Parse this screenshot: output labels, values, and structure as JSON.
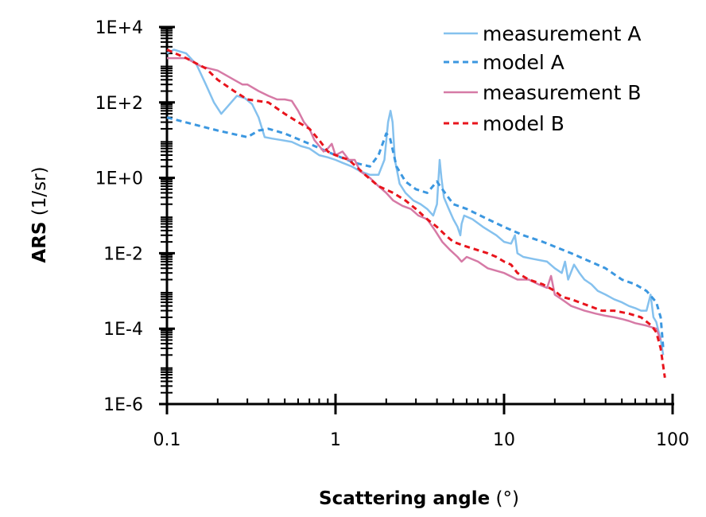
{
  "chart_data": {
    "type": "line",
    "xlabel": {
      "bold": "Scattering angle",
      "unit": "(°)"
    },
    "ylabel": {
      "bold": "ARS",
      "unit": "(1/sr)"
    },
    "x_scale": "log",
    "y_scale": "log",
    "xlim": [
      0.1,
      100
    ],
    "ylim": [
      1e-06,
      10000.0
    ],
    "x_ticks": [
      {
        "value": 0.1,
        "label": "0.1"
      },
      {
        "value": 1,
        "label": "1"
      },
      {
        "value": 10,
        "label": "10"
      },
      {
        "value": 100,
        "label": "100"
      }
    ],
    "y_ticks": [
      {
        "value": 10000.0,
        "label": "1E+4"
      },
      {
        "value": 100.0,
        "label": "1E+2"
      },
      {
        "value": 1,
        "label": "1E+0"
      },
      {
        "value": 0.01,
        "label": "1E-2"
      },
      {
        "value": 0.0001,
        "label": "1E-4"
      },
      {
        "value": 1e-06,
        "label": "1E-6"
      }
    ],
    "grid": false,
    "legend": "top-right",
    "series": [
      {
        "name": "measurement A",
        "color": "#85c1ee",
        "style": "solid",
        "points": [
          [
            0.1,
            2000
          ],
          [
            0.11,
            2500
          ],
          [
            0.13,
            2000
          ],
          [
            0.15,
            1000
          ],
          [
            0.17,
            300
          ],
          [
            0.19,
            100
          ],
          [
            0.21,
            50
          ],
          [
            0.23,
            80
          ],
          [
            0.26,
            150
          ],
          [
            0.29,
            130
          ],
          [
            0.32,
            90
          ],
          [
            0.35,
            40
          ],
          [
            0.38,
            12
          ],
          [
            0.42,
            11
          ],
          [
            0.48,
            10
          ],
          [
            0.55,
            9
          ],
          [
            0.62,
            7
          ],
          [
            0.7,
            6
          ],
          [
            0.8,
            4
          ],
          [
            0.9,
            3.5
          ],
          [
            1.0,
            3
          ],
          [
            1.1,
            2.5
          ],
          [
            1.25,
            2
          ],
          [
            1.4,
            1.5
          ],
          [
            1.6,
            1.2
          ],
          [
            1.8,
            1.2
          ],
          [
            1.95,
            3
          ],
          [
            2.05,
            30
          ],
          [
            2.12,
            60
          ],
          [
            2.18,
            30
          ],
          [
            2.25,
            3
          ],
          [
            2.4,
            0.7
          ],
          [
            2.6,
            0.4
          ],
          [
            2.9,
            0.25
          ],
          [
            3.2,
            0.2
          ],
          [
            3.5,
            0.15
          ],
          [
            3.8,
            0.1
          ],
          [
            4.0,
            0.2
          ],
          [
            4.15,
            3
          ],
          [
            4.25,
            1
          ],
          [
            4.4,
            0.3
          ],
          [
            4.7,
            0.15
          ],
          [
            5.0,
            0.08
          ],
          [
            5.3,
            0.05
          ],
          [
            5.5,
            0.03
          ],
          [
            5.6,
            0.06
          ],
          [
            5.8,
            0.1
          ],
          [
            6.5,
            0.08
          ],
          [
            7.5,
            0.05
          ],
          [
            9,
            0.03
          ],
          [
            10,
            0.02
          ],
          [
            11,
            0.018
          ],
          [
            11.6,
            0.03
          ],
          [
            12,
            0.01
          ],
          [
            13,
            0.008
          ],
          [
            15,
            0.007
          ],
          [
            18,
            0.006
          ],
          [
            20,
            0.004
          ],
          [
            22,
            0.003
          ],
          [
            23,
            0.006
          ],
          [
            24,
            0.002
          ],
          [
            26,
            0.005
          ],
          [
            28,
            0.003
          ],
          [
            30,
            0.002
          ],
          [
            33,
            0.0015
          ],
          [
            36,
            0.001
          ],
          [
            40,
            0.0008
          ],
          [
            45,
            0.0006
          ],
          [
            50,
            0.0005
          ],
          [
            55,
            0.0004
          ],
          [
            60,
            0.00035
          ],
          [
            65,
            0.0003
          ],
          [
            70,
            0.0003
          ],
          [
            74,
            0.0008
          ],
          [
            77,
            0.0002
          ],
          [
            80,
            0.00015
          ],
          [
            85,
            5e-05
          ],
          [
            88,
            2e-05
          ]
        ]
      },
      {
        "name": "model A",
        "color": "#3b97e0",
        "style": "dashed",
        "points": [
          [
            0.1,
            40
          ],
          [
            0.15,
            25
          ],
          [
            0.2,
            18
          ],
          [
            0.3,
            12
          ],
          [
            0.35,
            18
          ],
          [
            0.4,
            20
          ],
          [
            0.5,
            15
          ],
          [
            0.7,
            8
          ],
          [
            1.0,
            4
          ],
          [
            1.3,
            2.5
          ],
          [
            1.6,
            2
          ],
          [
            1.8,
            4
          ],
          [
            2.0,
            15
          ],
          [
            2.1,
            12
          ],
          [
            2.3,
            2
          ],
          [
            2.6,
            0.8
          ],
          [
            3.0,
            0.5
          ],
          [
            3.5,
            0.4
          ],
          [
            4.0,
            0.8
          ],
          [
            4.3,
            0.5
          ],
          [
            5.0,
            0.2
          ],
          [
            6.0,
            0.15
          ],
          [
            8,
            0.08
          ],
          [
            10,
            0.05
          ],
          [
            13,
            0.03
          ],
          [
            17,
            0.02
          ],
          [
            20,
            0.015
          ],
          [
            25,
            0.01
          ],
          [
            30,
            0.007
          ],
          [
            40,
            0.004
          ],
          [
            50,
            0.002
          ],
          [
            60,
            0.0015
          ],
          [
            70,
            0.001
          ],
          [
            80,
            0.0005
          ],
          [
            85,
            0.0002
          ],
          [
            88,
            3e-05
          ]
        ]
      },
      {
        "name": "measurement B",
        "color": "#d67aa6",
        "style": "solid",
        "points": [
          [
            0.1,
            1500
          ],
          [
            0.13,
            1500
          ],
          [
            0.16,
            900
          ],
          [
            0.2,
            700
          ],
          [
            0.25,
            400
          ],
          [
            0.28,
            300
          ],
          [
            0.3,
            300
          ],
          [
            0.35,
            200
          ],
          [
            0.4,
            150
          ],
          [
            0.45,
            120
          ],
          [
            0.5,
            120
          ],
          [
            0.55,
            110
          ],
          [
            0.6,
            60
          ],
          [
            0.65,
            30
          ],
          [
            0.7,
            20
          ],
          [
            0.75,
            10
          ],
          [
            0.8,
            7
          ],
          [
            0.85,
            5
          ],
          [
            0.9,
            6
          ],
          [
            0.95,
            8
          ],
          [
            1.0,
            4
          ],
          [
            1.1,
            5
          ],
          [
            1.2,
            3
          ],
          [
            1.3,
            3
          ],
          [
            1.4,
            1.5
          ],
          [
            1.6,
            1
          ],
          [
            1.8,
            0.6
          ],
          [
            2.0,
            0.4
          ],
          [
            2.2,
            0.25
          ],
          [
            2.5,
            0.18
          ],
          [
            2.8,
            0.15
          ],
          [
            3.1,
            0.1
          ],
          [
            3.5,
            0.08
          ],
          [
            3.9,
            0.04
          ],
          [
            4.3,
            0.02
          ],
          [
            4.8,
            0.012
          ],
          [
            5.3,
            0.008
          ],
          [
            5.6,
            0.006
          ],
          [
            6,
            0.008
          ],
          [
            7,
            0.006
          ],
          [
            8,
            0.004
          ],
          [
            10,
            0.003
          ],
          [
            12,
            0.002
          ],
          [
            14,
            0.002
          ],
          [
            16,
            0.0015
          ],
          [
            18,
            0.0012
          ],
          [
            19,
            0.0025
          ],
          [
            20,
            0.0008
          ],
          [
            22,
            0.0006
          ],
          [
            25,
            0.0004
          ],
          [
            30,
            0.0003
          ],
          [
            35,
            0.00025
          ],
          [
            40,
            0.00022
          ],
          [
            45,
            0.0002
          ],
          [
            50,
            0.00018
          ],
          [
            55,
            0.00016
          ],
          [
            60,
            0.00014
          ],
          [
            70,
            0.00012
          ],
          [
            80,
            0.0001
          ],
          [
            85,
            5e-05
          ]
        ]
      },
      {
        "name": "model B",
        "color": "#e8141c",
        "style": "dashed",
        "points": [
          [
            0.1,
            2500
          ],
          [
            0.13,
            1500
          ],
          [
            0.17,
            800
          ],
          [
            0.2,
            400
          ],
          [
            0.25,
            200
          ],
          [
            0.3,
            120
          ],
          [
            0.4,
            100
          ],
          [
            0.5,
            50
          ],
          [
            0.6,
            30
          ],
          [
            0.7,
            20
          ],
          [
            0.8,
            10
          ],
          [
            0.9,
            5
          ],
          [
            1.0,
            4
          ],
          [
            1.2,
            3
          ],
          [
            1.5,
            1.2
          ],
          [
            1.8,
            0.6
          ],
          [
            2.2,
            0.4
          ],
          [
            2.6,
            0.25
          ],
          [
            3.0,
            0.15
          ],
          [
            3.5,
            0.08
          ],
          [
            4.0,
            0.05
          ],
          [
            4.5,
            0.03
          ],
          [
            5,
            0.02
          ],
          [
            6,
            0.015
          ],
          [
            7,
            0.012
          ],
          [
            8,
            0.01
          ],
          [
            9,
            0.008
          ],
          [
            10,
            0.006
          ],
          [
            11,
            0.005
          ],
          [
            12,
            0.003
          ],
          [
            14,
            0.002
          ],
          [
            17,
            0.0015
          ],
          [
            20,
            0.001
          ],
          [
            22,
            0.0007
          ],
          [
            25,
            0.0006
          ],
          [
            28,
            0.0005
          ],
          [
            32,
            0.0004
          ],
          [
            38,
            0.0003
          ],
          [
            45,
            0.0003
          ],
          [
            55,
            0.00025
          ],
          [
            65,
            0.0002
          ],
          [
            75,
            0.00012
          ],
          [
            80,
            8e-05
          ],
          [
            85,
            3e-05
          ],
          [
            90,
            5e-06
          ]
        ]
      }
    ]
  }
}
